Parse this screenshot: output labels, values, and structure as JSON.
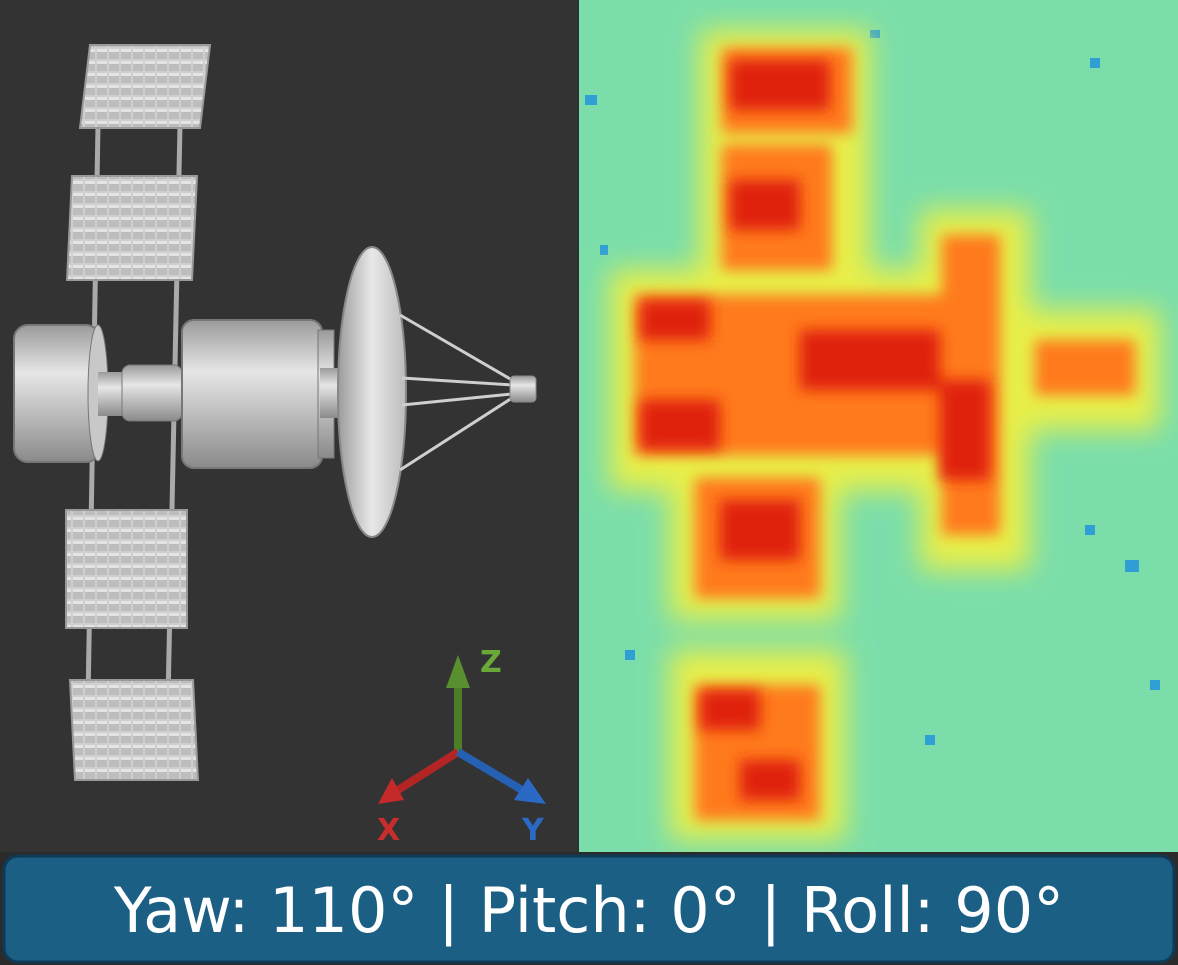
{
  "gizmo": {
    "z_label": "Z",
    "x_label": "X",
    "y_label": "Y"
  },
  "caption": "Yaw: 110° | Pitch: 0° | Roll: 90°"
}
